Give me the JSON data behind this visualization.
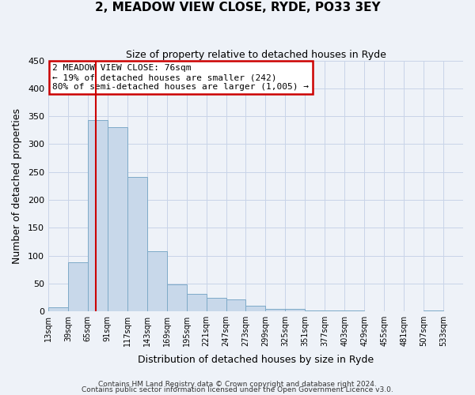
{
  "title": "2, MEADOW VIEW CLOSE, RYDE, PO33 3EY",
  "subtitle": "Size of property relative to detached houses in Ryde",
  "xlabel": "Distribution of detached houses by size in Ryde",
  "ylabel": "Number of detached properties",
  "bar_color": "#c8d8ea",
  "bar_edge_color": "#7eaac8",
  "grid_color": "#c8d4e8",
  "background_color": "#eef2f8",
  "property_line_x": 76,
  "property_line_color": "#cc0000",
  "annotation_text": "2 MEADOW VIEW CLOSE: 76sqm\n← 19% of detached houses are smaller (242)\n80% of semi-detached houses are larger (1,005) →",
  "annotation_box_color": "#ffffff",
  "annotation_box_edge": "#cc0000",
  "bins": [
    13,
    39,
    65,
    91,
    117,
    143,
    169,
    195,
    221,
    247,
    273,
    299,
    325,
    351,
    377,
    403,
    429,
    455,
    481,
    507,
    533,
    559
  ],
  "counts": [
    7,
    88,
    343,
    330,
    241,
    108,
    48,
    32,
    25,
    21,
    10,
    5,
    4,
    2,
    1,
    1,
    0,
    0,
    0,
    1,
    0
  ],
  "ylim": [
    0,
    450
  ],
  "yticks": [
    0,
    50,
    100,
    150,
    200,
    250,
    300,
    350,
    400,
    450
  ],
  "tick_labels": [
    "13sqm",
    "39sqm",
    "65sqm",
    "91sqm",
    "117sqm",
    "143sqm",
    "169sqm",
    "195sqm",
    "221sqm",
    "247sqm",
    "273sqm",
    "299sqm",
    "325sqm",
    "351sqm",
    "377sqm",
    "403sqm",
    "429sqm",
    "455sqm",
    "481sqm",
    "507sqm",
    "533sqm"
  ],
  "footer1": "Contains HM Land Registry data © Crown copyright and database right 2024.",
  "footer2": "Contains public sector information licensed under the Open Government Licence v3.0."
}
